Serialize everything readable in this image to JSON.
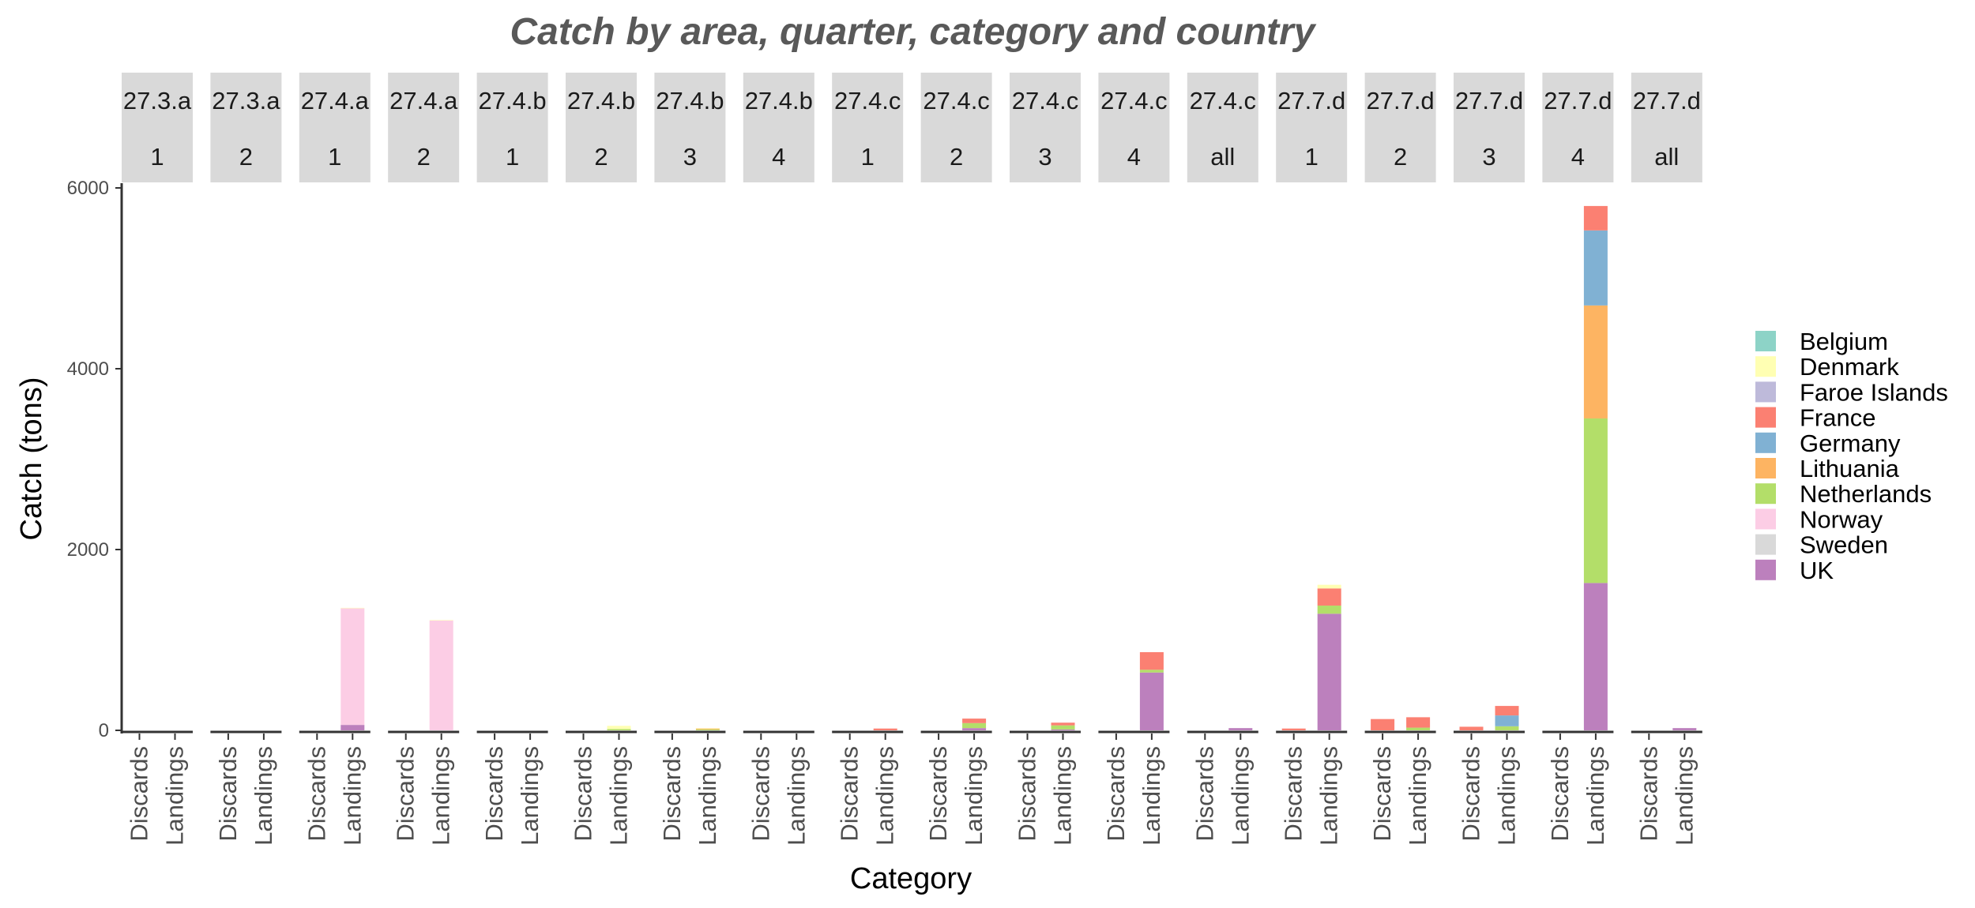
{
  "chart_data": {
    "type": "bar",
    "stacked": true,
    "title": "Catch by area, quarter, category and country",
    "xlabel": "Category",
    "ylabel": "Catch (tons)",
    "ylim": [
      0,
      6000
    ],
    "yticks": [
      0,
      2000,
      4000,
      6000
    ],
    "grid": false,
    "legend_position": "right",
    "categories": [
      "Discards",
      "Landings"
    ],
    "countries": [
      "Belgium",
      "Denmark",
      "Faroe Islands",
      "France",
      "Germany",
      "Lithuania",
      "Netherlands",
      "Norway",
      "Sweden",
      "UK"
    ],
    "colors": {
      "Belgium": "#8DD3C7",
      "Denmark": "#FFFFB3",
      "Faroe Islands": "#BEBADA",
      "France": "#FB8072",
      "Germany": "#80B1D3",
      "Lithuania": "#FDB462",
      "Netherlands": "#B3DE69",
      "Norway": "#FCCDE5",
      "Sweden": "#D9D9D9",
      "UK": "#BC80BD"
    },
    "facets": [
      {
        "area": "27.3.a",
        "quarter": "1",
        "bars": {
          "Discards": {},
          "Landings": {}
        }
      },
      {
        "area": "27.3.a",
        "quarter": "2",
        "bars": {
          "Discards": {},
          "Landings": {}
        }
      },
      {
        "area": "27.4.a",
        "quarter": "1",
        "bars": {
          "Discards": {},
          "Landings": {
            "UK": 60,
            "Norway": 1290,
            "Denmark": 5
          }
        }
      },
      {
        "area": "27.4.a",
        "quarter": "2",
        "bars": {
          "Discards": {},
          "Landings": {
            "Norway": 1215,
            "Denmark": 5
          }
        }
      },
      {
        "area": "27.4.b",
        "quarter": "1",
        "bars": {
          "Discards": {},
          "Landings": {}
        }
      },
      {
        "area": "27.4.b",
        "quarter": "2",
        "bars": {
          "Discards": {},
          "Landings": {
            "Netherlands": 15,
            "Denmark": 35
          }
        }
      },
      {
        "area": "27.4.b",
        "quarter": "3",
        "bars": {
          "Discards": {},
          "Landings": {
            "Netherlands": 10,
            "Lithuania": 10,
            "Denmark": 5
          }
        }
      },
      {
        "area": "27.4.b",
        "quarter": "4",
        "bars": {
          "Discards": {},
          "Landings": {}
        }
      },
      {
        "area": "27.4.c",
        "quarter": "1",
        "bars": {
          "Discards": {},
          "Landings": {
            "France": 20
          }
        }
      },
      {
        "area": "27.4.c",
        "quarter": "2",
        "bars": {
          "Discards": {},
          "Landings": {
            "UK": 25,
            "Netherlands": 55,
            "France": 50
          }
        }
      },
      {
        "area": "27.4.c",
        "quarter": "3",
        "bars": {
          "Discards": {},
          "Landings": {
            "UK": 10,
            "Netherlands": 45,
            "France": 30
          }
        }
      },
      {
        "area": "27.4.c",
        "quarter": "4",
        "bars": {
          "Discards": {},
          "Landings": {
            "UK": 640,
            "Netherlands": 30,
            "France": 195
          }
        }
      },
      {
        "area": "27.4.c",
        "quarter": "all",
        "bars": {
          "Discards": {},
          "Landings": {
            "UK": 25
          }
        }
      },
      {
        "area": "27.7.d",
        "quarter": "1",
        "bars": {
          "Discards": {
            "France": 20
          },
          "Landings": {
            "UK": 1290,
            "Netherlands": 90,
            "France": 190,
            "Denmark": 40
          }
        }
      },
      {
        "area": "27.7.d",
        "quarter": "2",
        "bars": {
          "Discards": {
            "France": 125
          },
          "Landings": {
            "Netherlands": 30,
            "France": 115
          }
        }
      },
      {
        "area": "27.7.d",
        "quarter": "3",
        "bars": {
          "Discards": {
            "France": 40
          },
          "Landings": {
            "Netherlands": 45,
            "Germany": 120,
            "France": 105
          }
        }
      },
      {
        "area": "27.7.d",
        "quarter": "4",
        "bars": {
          "Discards": {},
          "Landings": {
            "UK": 1630,
            "Netherlands": 1820,
            "Lithuania": 1250,
            "Germany": 830,
            "France": 270
          }
        }
      },
      {
        "area": "27.7.d",
        "quarter": "all",
        "bars": {
          "Discards": {},
          "Landings": {
            "UK": 25
          }
        }
      }
    ]
  }
}
